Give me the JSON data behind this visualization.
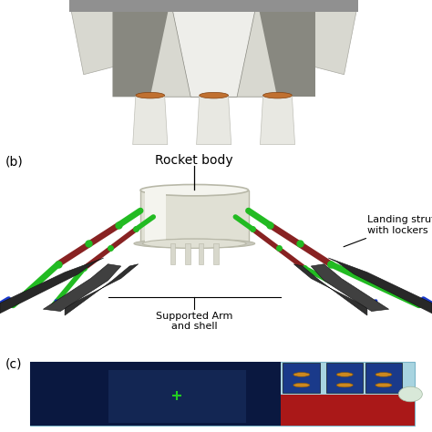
{
  "bg_color": "#ffffff",
  "panel_a": {
    "bg": "#6ab4d8",
    "body_color": "#d8d8d0",
    "body_dark": "#a8a8a0",
    "body_light": "#eeeeea",
    "shadow_color": "#888880",
    "copper_color": "#c07030",
    "nozzle_color": "#e8e8e2",
    "top_gray": "#909090"
  },
  "panel_b": {
    "label": "(b)",
    "title": "Rocket body",
    "annotation1": "Landing strut\nwith lockers",
    "annotation2": "Supported Arm\nand shell",
    "cyl_color": "#e0e0d4",
    "cyl_edge": "#b8b8a8",
    "cyl_light": "#f4f4ee",
    "base_color": "#c8c8bc",
    "strut_green": "#22bb22",
    "strut_red": "#882222",
    "strut_blue": "#1a3acc",
    "arm_dark": "#282828",
    "arm_mid": "#383838"
  },
  "panel_c": {
    "label": "(c)",
    "outer_bg": "#a8d4e0",
    "dark_blue": "#0a1840",
    "mid_blue": "#1a3060",
    "red_color": "#aa1818",
    "bright_blue": "#1a3a8a",
    "orange": "#cc8820",
    "white_circ": "#d8e8d8"
  },
  "figsize": [
    4.74,
    4.74
  ],
  "dpi": 100
}
